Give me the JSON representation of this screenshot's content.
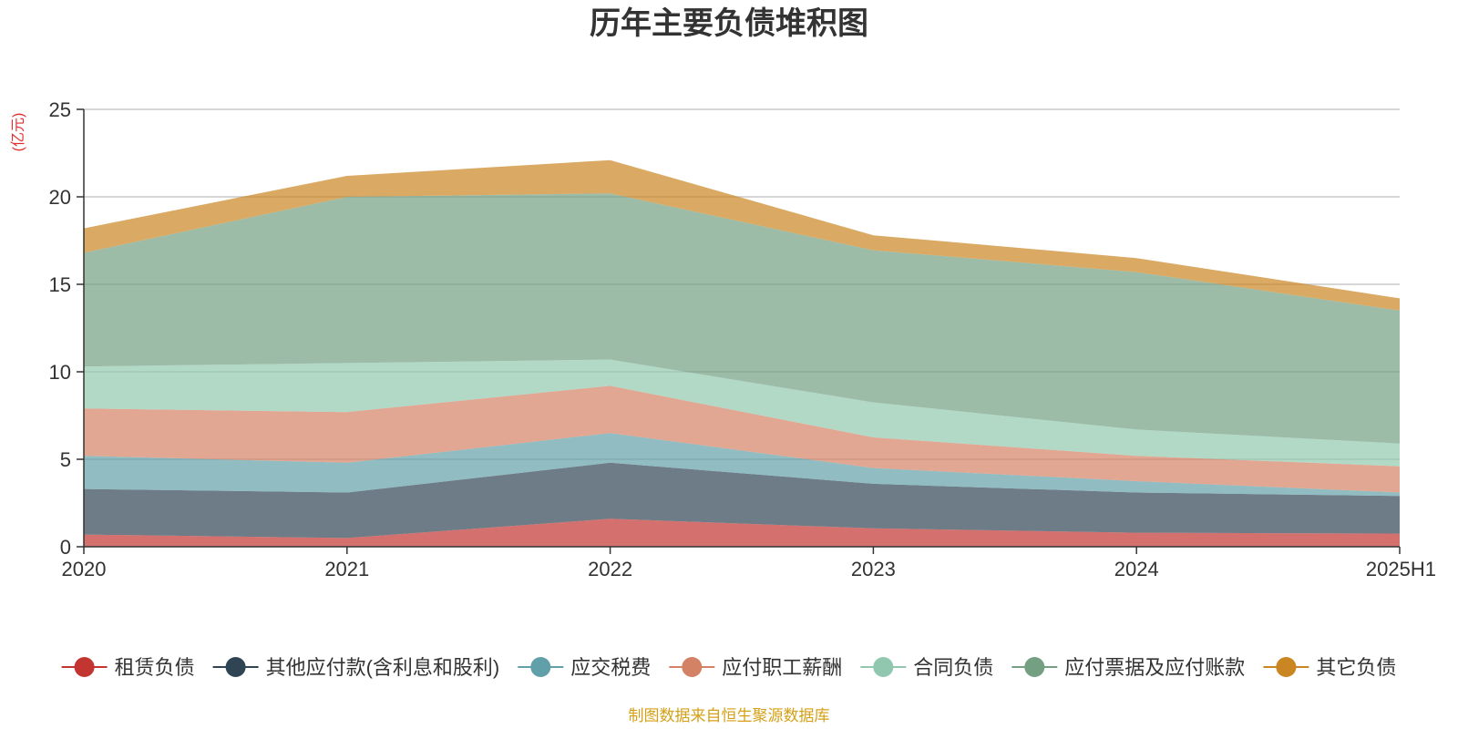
{
  "chart_data": {
    "type": "area",
    "stacked": true,
    "title": "历年主要负债堆积图",
    "unit_label": "(亿元)",
    "x": [
      "2020",
      "2021",
      "2022",
      "2023",
      "2024",
      "2025H1"
    ],
    "ylim": [
      0,
      25
    ],
    "yticks": [
      "0",
      "5",
      "10",
      "15",
      "20",
      "25"
    ],
    "grid": true,
    "legend_position": "bottom",
    "series": [
      {
        "name": "租赁负债",
        "color": "#c23531",
        "values": [
          0.7,
          0.5,
          1.6,
          1.05,
          0.8,
          0.75
        ]
      },
      {
        "name": "其他应付款(含利息和股利)",
        "color": "#2f4554",
        "values": [
          2.6,
          2.6,
          3.2,
          2.55,
          2.3,
          2.15
        ]
      },
      {
        "name": "应交税费",
        "color": "#61a0a8",
        "values": [
          1.9,
          1.7,
          1.7,
          0.9,
          0.65,
          0.2
        ]
      },
      {
        "name": "应付职工薪酬",
        "color": "#d48265",
        "values": [
          2.7,
          2.9,
          2.7,
          1.75,
          1.45,
          1.5
        ]
      },
      {
        "name": "合同负债",
        "color": "#91c7ae",
        "values": [
          2.4,
          2.8,
          1.5,
          2.0,
          1.5,
          1.3
        ]
      },
      {
        "name": "应付票据及应付账款",
        "color": "#749f83",
        "values": [
          6.5,
          9.5,
          9.5,
          8.7,
          9.0,
          7.6
        ]
      },
      {
        "name": "其它负债",
        "color": "#ca8622",
        "values": [
          1.4,
          1.2,
          1.9,
          0.85,
          0.8,
          0.7
        ]
      }
    ],
    "source_note": "制图数据来自恒生聚源数据库"
  }
}
